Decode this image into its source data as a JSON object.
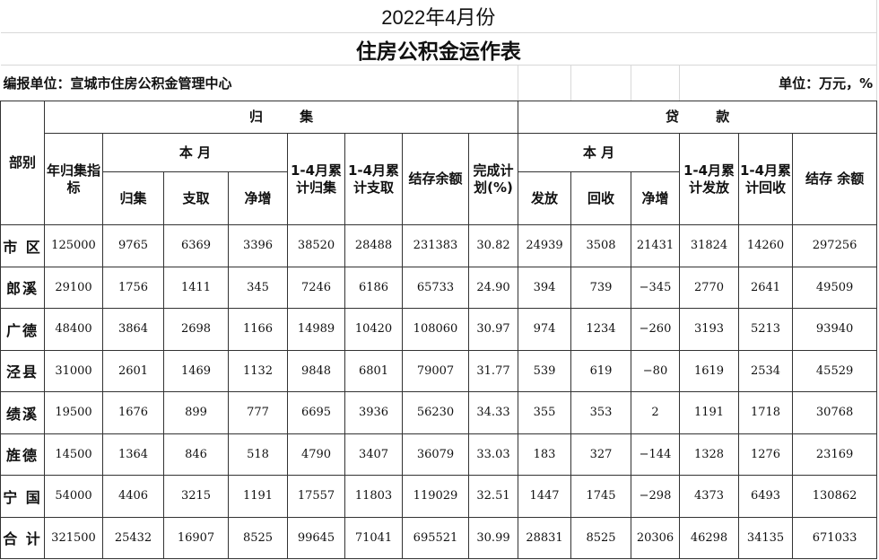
{
  "title": "2022年4月份",
  "subtitle": "住房公积金运作表",
  "reporter": "编报单位：宣城市住房公积金管理中心",
  "unit": "单位：万元，%",
  "header": {
    "dept": "部别",
    "collect_group": "归 集",
    "loan_group": "贷 款",
    "annual_target": "年归集指标",
    "this_month": "本 月",
    "cum_collect": "1-4月累计归集",
    "cum_withdraw": "1-4月累计支取",
    "balance": "结存余额",
    "completion": "完成计划(%)",
    "loan_this_month": "本 月",
    "cum_issue": "1-4月累计发放",
    "cum_recover": "1-4月累计回收",
    "loan_balance": "结存 余额",
    "collect": "归集",
    "withdraw": "支取",
    "net": "净增",
    "issue": "发放",
    "recover": "回收",
    "loan_net": "净增"
  },
  "rows": [
    [
      "市 区",
      "125000",
      "9765",
      "6369",
      "3396",
      "38520",
      "28488",
      "231383",
      "30.82",
      "24939",
      "3508",
      "21431",
      "31824",
      "14260",
      "297256"
    ],
    [
      "郎溪",
      "29100",
      "1756",
      "1411",
      "345",
      "7246",
      "6186",
      "65733",
      "24.90",
      "394",
      "739",
      "−345",
      "2770",
      "2641",
      "49509"
    ],
    [
      "广德",
      "48400",
      "3864",
      "2698",
      "1166",
      "14989",
      "10420",
      "108060",
      "30.97",
      "974",
      "1234",
      "−260",
      "3193",
      "5213",
      "93940"
    ],
    [
      "泾县",
      "31000",
      "2601",
      "1469",
      "1132",
      "9848",
      "6801",
      "79007",
      "31.77",
      "539",
      "619",
      "−80",
      "1619",
      "2534",
      "45529"
    ],
    [
      "绩溪",
      "19500",
      "1676",
      "899",
      "777",
      "6695",
      "3936",
      "56230",
      "34.33",
      "355",
      "353",
      "2",
      "1191",
      "1718",
      "30768"
    ],
    [
      "旌德",
      "14500",
      "1364",
      "846",
      "518",
      "4790",
      "3407",
      "36079",
      "33.03",
      "183",
      "327",
      "−144",
      "1328",
      "1276",
      "23169"
    ],
    [
      "宁 国",
      "54000",
      "4406",
      "3215",
      "1191",
      "17557",
      "11803",
      "119029",
      "32.51",
      "1447",
      "1745",
      "−298",
      "4373",
      "6493",
      "130862"
    ],
    [
      "合 计",
      "321500",
      "25432",
      "16907",
      "8525",
      "99645",
      "71041",
      "695521",
      "30.99",
      "28831",
      "8525",
      "20306",
      "46298",
      "34135",
      "671033"
    ]
  ]
}
